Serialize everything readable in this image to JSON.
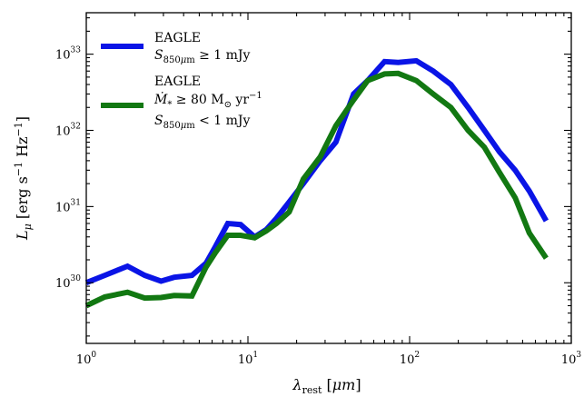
{
  "chart_data": {
    "type": "line",
    "title": "",
    "xlabel": "λ_rest [μm]",
    "ylabel": "L_μ [erg s^-1 Hz^-1]",
    "xscale": "log",
    "yscale": "log",
    "xlim": [
      1,
      1000
    ],
    "ylim": [
      1.6e+29,
      3.5e+33
    ],
    "grid": false,
    "legend_position": "top-left",
    "x_ticks": [
      {
        "value": 1,
        "base": "10",
        "exp": "0"
      },
      {
        "value": 10,
        "base": "10",
        "exp": "1"
      },
      {
        "value": 100,
        "base": "10",
        "exp": "2"
      },
      {
        "value": 1000,
        "base": "10",
        "exp": "3"
      }
    ],
    "y_ticks": [
      {
        "value": 1e+30,
        "base": "10",
        "exp": "30"
      },
      {
        "value": 1e+31,
        "base": "10",
        "exp": "31"
      },
      {
        "value": 1e+32,
        "base": "10",
        "exp": "32"
      },
      {
        "value": 1e+33,
        "base": "10",
        "exp": "33"
      }
    ],
    "series": [
      {
        "legend_lines": [
          "EAGLE",
          "S850μm ≥ 1 mJy"
        ],
        "color": "#0a14e6",
        "x": [
          1.0,
          1.3,
          1.8,
          2.3,
          2.9,
          3.5,
          4.5,
          5.5,
          6.3,
          7.5,
          9.0,
          11,
          13,
          15,
          18,
          22,
          28,
          35,
          45,
          55,
          70,
          85,
          110,
          140,
          180,
          230,
          290,
          360,
          450,
          550,
          700
        ],
        "y": [
          1e+30,
          1.25e+30,
          1.65e+30,
          1.25e+30,
          1.05e+30,
          1.18e+30,
          1.25e+30,
          1.8e+30,
          3e+30,
          6e+30,
          5.8e+30,
          4e+30,
          5e+30,
          7e+30,
          1.15e+31,
          2e+31,
          4e+31,
          7e+31,
          3e+32,
          4.5e+32,
          8e+32,
          7.8e+32,
          8.2e+32,
          6e+32,
          4e+32,
          2e+32,
          1e+32,
          5.2e+31,
          3e+31,
          1.6e+31,
          6.5e+30
        ]
      },
      {
        "legend_lines": [
          "EAGLE",
          "Ṁ* ≥ 80 M⊙ yr⁻¹",
          "S850μm < 1 mJy"
        ],
        "color": "#127812",
        "x": [
          1.0,
          1.3,
          1.8,
          2.3,
          2.9,
          3.5,
          4.5,
          5.5,
          6.3,
          7.5,
          9.0,
          11,
          13,
          15,
          18,
          22,
          28,
          35,
          45,
          55,
          70,
          85,
          110,
          140,
          180,
          230,
          290,
          360,
          450,
          550,
          700
        ],
        "y": [
          5e+29,
          6.5e+29,
          7.5e+29,
          6.3e+29,
          6.4e+29,
          6.8e+29,
          6.7e+29,
          1.6e+30,
          2.5e+30,
          4.2e+30,
          4.2e+30,
          3.9e+30,
          4.8e+30,
          6e+30,
          8.5e+30,
          2.3e+31,
          4.5e+31,
          1.15e+32,
          2.5e+32,
          4.5e+32,
          5.5e+32,
          5.6e+32,
          4.5e+32,
          3e+32,
          2e+32,
          1e+32,
          6e+31,
          2.8e+31,
          1.3e+31,
          4.5e+30,
          2.1e+30
        ]
      }
    ]
  }
}
